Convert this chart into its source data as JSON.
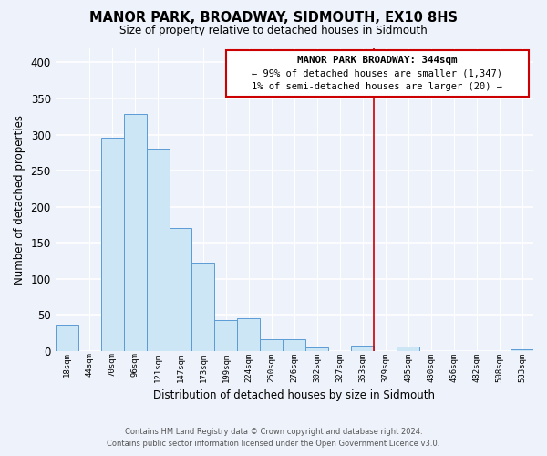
{
  "title": "MANOR PARK, BROADWAY, SIDMOUTH, EX10 8HS",
  "subtitle": "Size of property relative to detached houses in Sidmouth",
  "xlabel": "Distribution of detached houses by size in Sidmouth",
  "ylabel": "Number of detached properties",
  "bar_labels": [
    "18sqm",
    "44sqm",
    "70sqm",
    "96sqm",
    "121sqm",
    "147sqm",
    "173sqm",
    "199sqm",
    "224sqm",
    "250sqm",
    "276sqm",
    "302sqm",
    "327sqm",
    "353sqm",
    "379sqm",
    "405sqm",
    "430sqm",
    "456sqm",
    "482sqm",
    "508sqm",
    "533sqm"
  ],
  "bar_values": [
    37,
    0,
    296,
    329,
    280,
    170,
    123,
    43,
    46,
    16,
    17,
    5,
    0,
    7,
    0,
    6,
    0,
    0,
    0,
    0,
    2
  ],
  "bar_color": "#cde6f5",
  "bar_edge_color": "#5b9bd5",
  "ylim": [
    0,
    420
  ],
  "yticks": [
    0,
    50,
    100,
    150,
    200,
    250,
    300,
    350,
    400
  ],
  "vline_x": 13.5,
  "vline_color": "#cc0000",
  "annotation_title": "MANOR PARK BROADWAY: 344sqm",
  "annotation_line1": "← 99% of detached houses are smaller (1,347)",
  "annotation_line2": "1% of semi-detached houses are larger (20) →",
  "footer1": "Contains HM Land Registry data © Crown copyright and database right 2024.",
  "footer2": "Contains public sector information licensed under the Open Government Licence v3.0.",
  "background_color": "#eef2fa"
}
